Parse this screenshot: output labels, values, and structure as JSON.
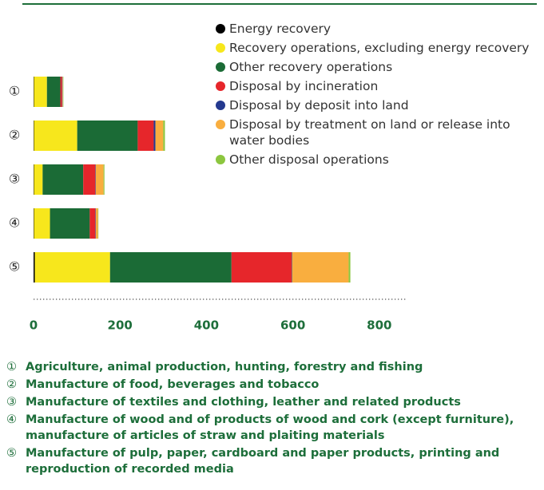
{
  "chart_data": {
    "type": "stacked-bar-horizontal",
    "categories": [
      "①",
      "②",
      "③",
      "④",
      "⑤"
    ],
    "series": [
      {
        "name": "Energy recovery",
        "color": "#000000",
        "values": [
          1,
          1,
          1,
          1,
          3
        ]
      },
      {
        "name": "Recovery operations, excluding energy recovery",
        "color": "#f7e71c",
        "values": [
          30,
          100,
          20,
          37,
          174
        ]
      },
      {
        "name": "Other recovery operations",
        "color": "#1b6b36",
        "values": [
          31,
          140,
          94,
          92,
          281
        ]
      },
      {
        "name": "Disposal by incineration",
        "color": "#e6262b",
        "values": [
          4,
          37,
          28,
          13,
          139
        ]
      },
      {
        "name": "Disposal by deposit into land",
        "color": "#24398f",
        "values": [
          1,
          4,
          1,
          1,
          1
        ]
      },
      {
        "name": "Disposal by treatment on land or release into water bodies",
        "color": "#f9ae3f",
        "values": [
          1,
          18,
          18,
          5,
          131
        ]
      },
      {
        "name": "Other disposal operations",
        "color": "#8cc63f",
        "values": [
          1,
          4,
          2,
          1,
          4
        ]
      }
    ],
    "xlim": [
      0,
      865
    ],
    "xticks": [
      0,
      200,
      400,
      600,
      800
    ],
    "notes": [
      {
        "marker": "①",
        "text": "Agriculture, animal production, hunting, forestry and fishing"
      },
      {
        "marker": "②",
        "text": "Manufacture of food, beverages and tobacco"
      },
      {
        "marker": "③",
        "text": "Manufacture of textiles and clothing, leather and related products"
      },
      {
        "marker": "④",
        "text": "Manufacture of wood and of products of wood and cork (except furniture), manufacture of articles of straw and plaiting materials"
      },
      {
        "marker": "⑤",
        "text": "Manufacture of pulp, paper, cardboard and paper products, printing and reproduction of recorded media"
      }
    ]
  }
}
